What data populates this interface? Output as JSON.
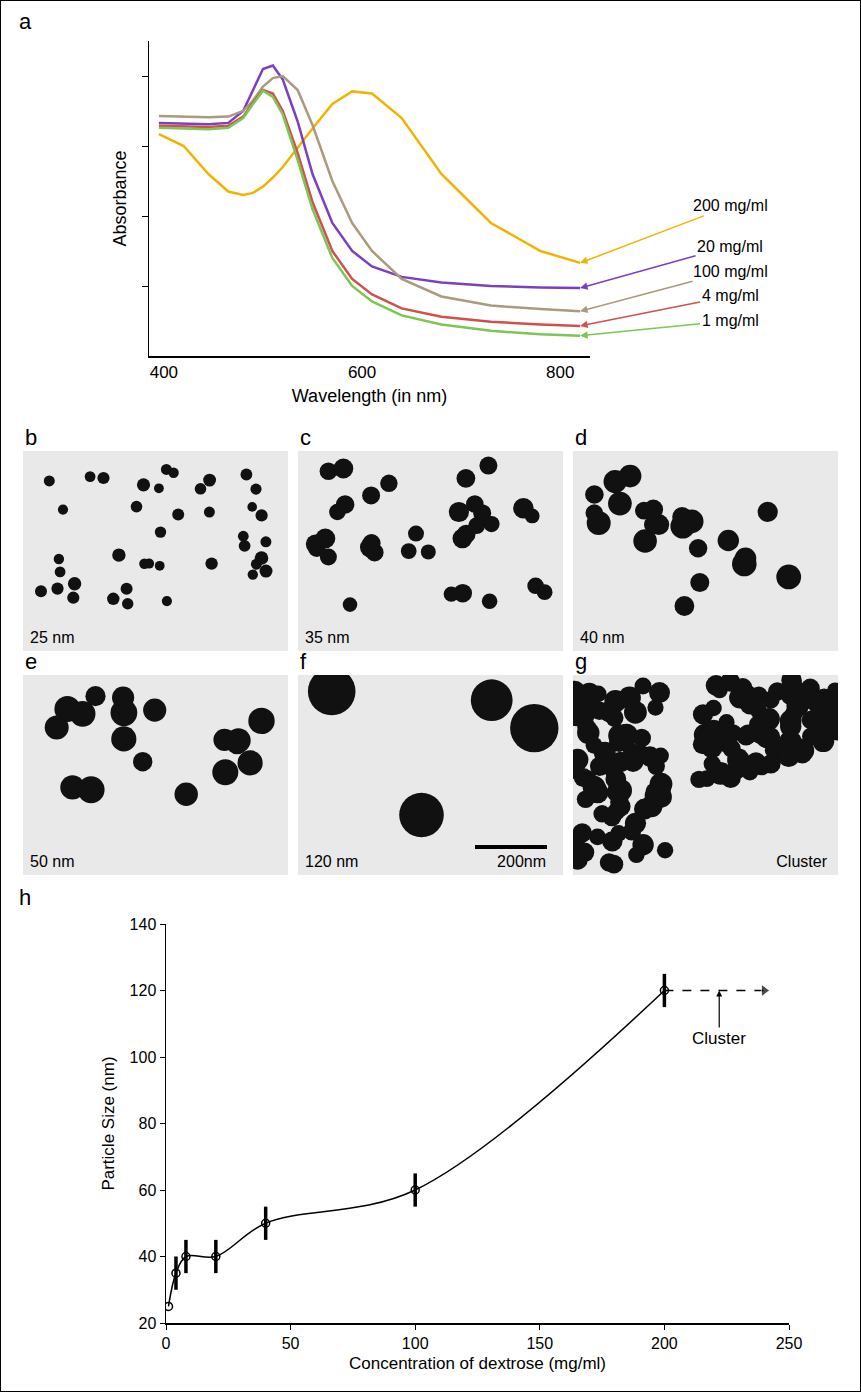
{
  "chart_data": [
    {
      "panel": "a",
      "type": "line",
      "x_label": "Wavelength (in nm)",
      "y_label": "Absorbance",
      "xlim": [
        385,
        830
      ],
      "xticks": [
        400,
        600,
        800
      ],
      "ylim": [
        0,
        4.5
      ],
      "yticks": [
        1,
        2,
        3,
        4
      ],
      "tick_labels": "x",
      "grid": false,
      "x": [
        395,
        420,
        445,
        465,
        480,
        490,
        500,
        510,
        520,
        535,
        550,
        570,
        590,
        610,
        640,
        680,
        730,
        780,
        820
      ],
      "series": [
        {
          "name": "200 mg/ml",
          "color": "#f2b300",
          "values": [
            3.17,
            3.0,
            2.6,
            2.35,
            2.3,
            2.33,
            2.42,
            2.55,
            2.7,
            2.98,
            3.25,
            3.6,
            3.78,
            3.75,
            3.4,
            2.6,
            1.9,
            1.5,
            1.33
          ]
        },
        {
          "name": "20 mg/ml",
          "color": "#7b3fbf",
          "values": [
            3.33,
            3.32,
            3.31,
            3.33,
            3.5,
            3.8,
            4.1,
            4.15,
            3.95,
            3.35,
            2.6,
            1.9,
            1.5,
            1.28,
            1.13,
            1.05,
            1.0,
            0.98,
            0.97
          ]
        },
        {
          "name": "100 mg/ml",
          "color": "#a99b7c",
          "values": [
            3.43,
            3.42,
            3.41,
            3.42,
            3.5,
            3.65,
            3.85,
            3.97,
            4.0,
            3.8,
            3.3,
            2.5,
            1.9,
            1.5,
            1.1,
            0.85,
            0.72,
            0.67,
            0.64
          ]
        },
        {
          "name": "4 mg/ml",
          "color": "#d0504d",
          "values": [
            3.29,
            3.28,
            3.27,
            3.29,
            3.42,
            3.62,
            3.8,
            3.75,
            3.5,
            2.9,
            2.2,
            1.5,
            1.1,
            0.88,
            0.68,
            0.56,
            0.49,
            0.45,
            0.43
          ]
        },
        {
          "name": "1 mg/ml",
          "color": "#7cc653",
          "values": [
            3.26,
            3.25,
            3.24,
            3.26,
            3.4,
            3.6,
            3.79,
            3.7,
            3.45,
            2.8,
            2.1,
            1.4,
            1.0,
            0.78,
            0.58,
            0.45,
            0.36,
            0.31,
            0.29
          ]
        }
      ]
    },
    {
      "panel": "h",
      "type": "line",
      "x_label": "Concentration of dextrose (mg/ml)",
      "y_label": "Particle Size (nm)",
      "xlim": [
        0,
        250
      ],
      "xticks": [
        0,
        50,
        100,
        150,
        200,
        250
      ],
      "ylim": [
        20,
        140
      ],
      "yticks": [
        20,
        40,
        60,
        80,
        100,
        120,
        140
      ],
      "grid": false,
      "series": [
        {
          "color": "#000000",
          "marker": "circle-open",
          "line_style": "solid",
          "x": [
            1,
            4,
            8,
            20,
            40,
            100,
            200
          ],
          "values": [
            25,
            35,
            40,
            40,
            50,
            60,
            120
          ],
          "errors": [
            0,
            5,
            5,
            5,
            5,
            5,
            5
          ]
        },
        {
          "color": "#000000",
          "marker": "arrow",
          "line_style": "dashed",
          "x": [
            200,
            240
          ],
          "values": [
            120,
            120
          ]
        }
      ],
      "annotations": [
        {
          "text": "Cluster",
          "x": 222,
          "y": 120
        }
      ]
    }
  ],
  "images": [
    {
      "panel": "b",
      "label": "25 nm"
    },
    {
      "panel": "c",
      "label": "35 nm"
    },
    {
      "panel": "d",
      "label": "40 nm"
    },
    {
      "panel": "e",
      "label": "50 nm"
    },
    {
      "panel": "f",
      "label": "120 nm",
      "scale_bar": "200nm"
    },
    {
      "panel": "g",
      "label": "Cluster"
    }
  ]
}
